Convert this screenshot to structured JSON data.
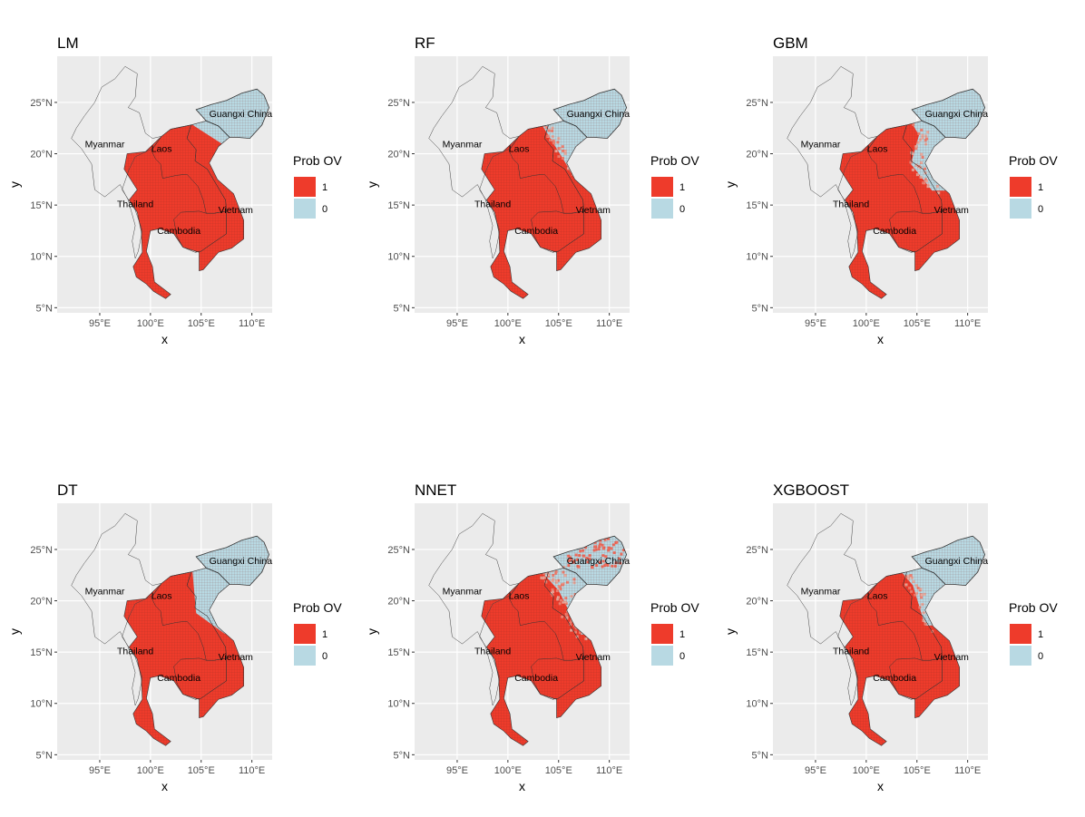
{
  "maps": [
    {
      "title": "LM"
    },
    {
      "title": "RF"
    },
    {
      "title": "GBM"
    },
    {
      "title": "DT"
    },
    {
      "title": "NNET"
    },
    {
      "title": "XGBOOST"
    }
  ],
  "axes": {
    "xlabel": "x",
    "ylabel": "y",
    "xticks": [
      "95°E",
      "100°E",
      "105°E",
      "110°E"
    ],
    "yticks": [
      "5°N",
      "10°N",
      "15°N",
      "20°N",
      "25°N"
    ]
  },
  "legend": {
    "title": "Prob OV",
    "items": [
      {
        "label": "1",
        "color": "#ee3b2b"
      },
      {
        "label": "0",
        "color": "#b8d9e3"
      }
    ]
  },
  "place_labels": [
    "Myanmar",
    "Laos",
    "Guangxi China",
    "Thailand",
    "Vietnam",
    "Cambodia"
  ],
  "colors": {
    "panel_background": "#ebebeb",
    "gridline": "#ffffff",
    "class_1": "#ee3b2b",
    "class_0": "#b8d9e3",
    "border": "#333333"
  }
}
